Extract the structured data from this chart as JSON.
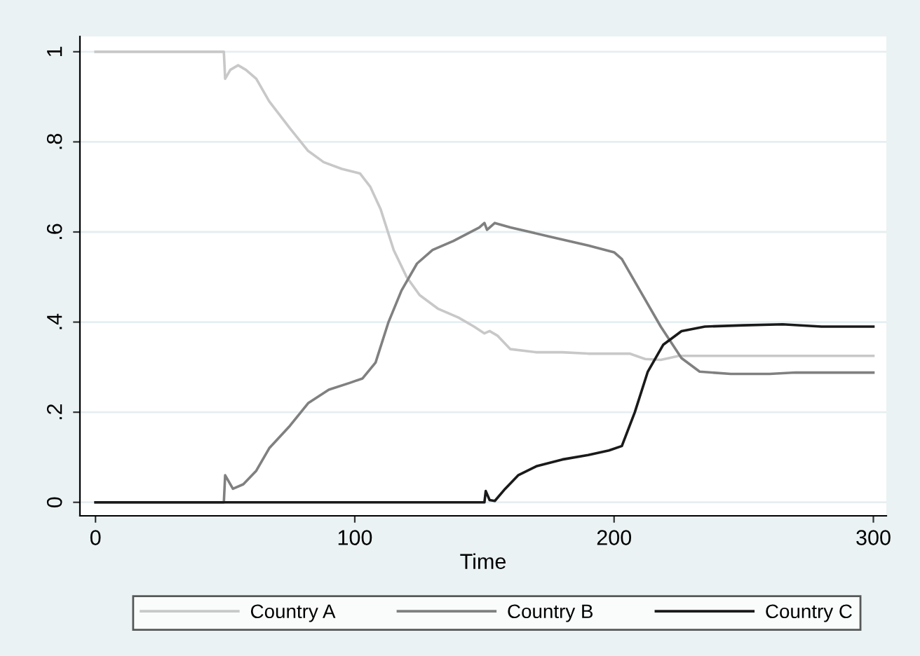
{
  "chart_data": {
    "type": "line",
    "xlabel": "Time",
    "xlim": [
      -6,
      305
    ],
    "xticks": [
      0,
      100,
      200,
      300
    ],
    "ylim": [
      -0.03,
      1.034
    ],
    "yticks": [
      {
        "value": 0,
        "label": "0"
      },
      {
        "value": 0.2,
        "label": ".2"
      },
      {
        "value": 0.4,
        "label": ".4"
      },
      {
        "value": 0.6,
        "label": ".6"
      },
      {
        "value": 0.8,
        "label": ".8"
      },
      {
        "value": 1,
        "label": "1"
      }
    ],
    "grid": "y",
    "legend": "bottom",
    "marker": "none",
    "line_style": "solid",
    "series": [
      {
        "name": "Country A",
        "color": "#c8c8c8",
        "x": [
          0,
          49.5,
          50,
          52,
          55,
          58,
          62,
          67,
          75,
          82,
          88,
          95,
          102,
          106,
          110,
          115,
          120,
          125,
          132,
          140,
          146,
          150,
          152,
          155,
          160,
          170,
          180,
          190,
          200,
          206,
          212,
          218,
          225,
          230,
          240,
          260,
          300
        ],
        "values": [
          1,
          1,
          0.94,
          0.96,
          0.97,
          0.96,
          0.94,
          0.89,
          0.83,
          0.78,
          0.755,
          0.74,
          0.73,
          0.7,
          0.65,
          0.56,
          0.5,
          0.46,
          0.43,
          0.41,
          0.39,
          0.375,
          0.38,
          0.37,
          0.34,
          0.333,
          0.333,
          0.33,
          0.33,
          0.33,
          0.318,
          0.316,
          0.325,
          0.325,
          0.325,
          0.325,
          0.325
        ]
      },
      {
        "name": "Country B",
        "color": "#808080",
        "x": [
          0,
          49.5,
          50,
          53,
          57,
          62,
          67,
          75,
          82,
          90,
          98,
          103,
          108,
          113,
          118,
          124,
          130,
          138,
          148,
          150,
          151,
          154,
          160,
          175,
          190,
          200,
          203,
          210,
          218,
          226,
          233,
          245,
          260,
          270,
          300
        ],
        "values": [
          0,
          0,
          0.06,
          0.03,
          0.04,
          0.07,
          0.12,
          0.17,
          0.22,
          0.25,
          0.265,
          0.275,
          0.31,
          0.4,
          0.47,
          0.53,
          0.56,
          0.58,
          0.61,
          0.62,
          0.605,
          0.62,
          0.61,
          0.59,
          0.57,
          0.555,
          0.54,
          0.47,
          0.39,
          0.32,
          0.29,
          0.285,
          0.285,
          0.288,
          0.288
        ]
      },
      {
        "name": "Country C",
        "color": "#1a1a1a",
        "x": [
          0,
          150,
          150.5,
          152,
          154,
          158,
          163,
          170,
          180,
          190,
          198,
          203,
          208,
          213,
          219,
          226,
          235,
          250,
          265,
          280,
          300
        ],
        "values": [
          0,
          0,
          0.025,
          0.005,
          0.003,
          0.03,
          0.06,
          0.08,
          0.095,
          0.105,
          0.115,
          0.125,
          0.2,
          0.29,
          0.35,
          0.38,
          0.39,
          0.393,
          0.395,
          0.39,
          0.39
        ]
      }
    ]
  }
}
